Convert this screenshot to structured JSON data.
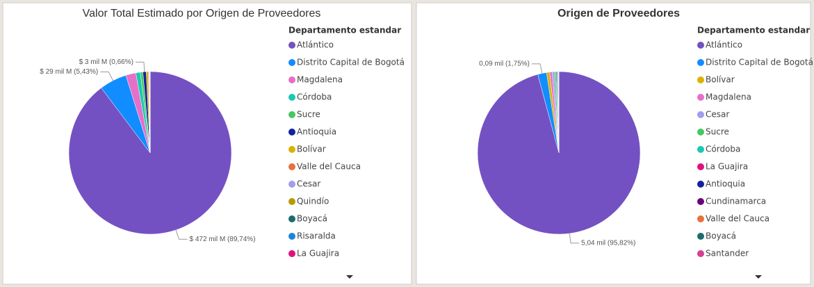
{
  "chart_data": [
    {
      "type": "pie",
      "title": "Valor Total Estimado por Origen de Proveedores",
      "legend_title": "Departamento estandar",
      "categories": [
        "Atlántico",
        "Distrito Capital de Bogotá",
        "Magdalena",
        "Córdoba",
        "Sucre",
        "Antioquia",
        "Bolívar",
        "Valle del Cauca",
        "Cesar",
        "Quindío",
        "Boyacá",
        "Risaralda",
        "La Guajira"
      ],
      "values": [
        89.74,
        5.43,
        2.0,
        0.9,
        0.5,
        0.66,
        0.4,
        0.15,
        0.1,
        0.06,
        0.03,
        0.02,
        0.01
      ],
      "value_labels": [
        "$ 472 mil M (89,74%)",
        "$ 29 mil M (5,43%)",
        null,
        null,
        null,
        "$ 3 mil M (0,66%)",
        null,
        null,
        null,
        null,
        null,
        null,
        null
      ],
      "colors": [
        "#7451c2",
        "#118dff",
        "#e66fc8",
        "#1ac9b1",
        "#45c862",
        "#12239e",
        "#d9b300",
        "#e8703c",
        "#a39cf0",
        "#b89b00",
        "#1b6b6e",
        "#1b86d6",
        "#e0117f"
      ]
    },
    {
      "type": "pie",
      "title": "Origen de Proveedores",
      "legend_title": "Departamento estandar",
      "categories": [
        "Atlántico",
        "Distrito Capital de Bogotá",
        "Bolívar",
        "Magdalena",
        "Cesar",
        "Sucre",
        "Córdoba",
        "La Guajira",
        "Antioquia",
        "Cundinamarca",
        "Valle del Cauca",
        "Boyacá",
        "Santander"
      ],
      "values": [
        95.82,
        1.75,
        0.6,
        0.5,
        0.4,
        0.3,
        0.25,
        0.15,
        0.1,
        0.06,
        0.04,
        0.02,
        0.01
      ],
      "value_labels": [
        "5,04 mil (95,82%)",
        "0,09 mil (1,75%)",
        null,
        null,
        null,
        null,
        null,
        null,
        null,
        null,
        null,
        null,
        null
      ],
      "colors": [
        "#7451c2",
        "#118dff",
        "#d9b300",
        "#e66fc8",
        "#a39cf0",
        "#45c862",
        "#1ac9b1",
        "#e0117f",
        "#12239e",
        "#6b007b",
        "#e8703c",
        "#1b6b6e",
        "#d64092"
      ]
    }
  ]
}
